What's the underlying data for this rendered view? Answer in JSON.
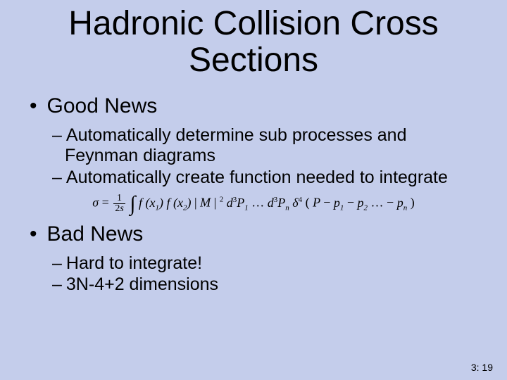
{
  "background_color": "#c4cdeb",
  "title": "Hadronic Collision Cross Sections",
  "title_fontsize": 48,
  "title_color": "#000000",
  "good": {
    "heading": "Good News",
    "items": [
      "Automatically determine sub processes and Feynman diagrams",
      "Automatically create function needed to integrate"
    ]
  },
  "formula": {
    "sigma": "σ",
    "equals": "=",
    "frac_num": "1",
    "frac_den": "2s",
    "int": "∫",
    "fx1": "f (x",
    "sub1": "1",
    "close1": ")",
    "fx2": "f (x",
    "sub2": "2",
    "close2": ")",
    "bar1": " | ",
    "M": "M",
    "bar2": " | ",
    "sq": "2",
    "sp1": "  ",
    "d": "d",
    "p3": "3",
    "P1": "P",
    "P1sub": "1",
    "dots": "…",
    "d2": "d",
    "p3b": "3",
    "Pn": "P",
    "Pnsub": "n",
    "delta": "δ",
    "delta_sup": "4",
    "open": "(",
    "P": "P",
    "minus": " − ",
    "p1": "p",
    "p1sub": "1",
    "minus2": " − ",
    "p2": "p",
    "p2sub": "2",
    "dots2": "… − ",
    "pn": "p",
    "pnsub": "n",
    "closep": ")"
  },
  "bad": {
    "heading": "Bad News",
    "items": [
      "Hard to integrate!",
      "3N-4+2 dimensions"
    ]
  },
  "page_number": "3: 19",
  "body_fontsize_l1": 30,
  "body_fontsize_l2": 25,
  "text_color": "#000000"
}
